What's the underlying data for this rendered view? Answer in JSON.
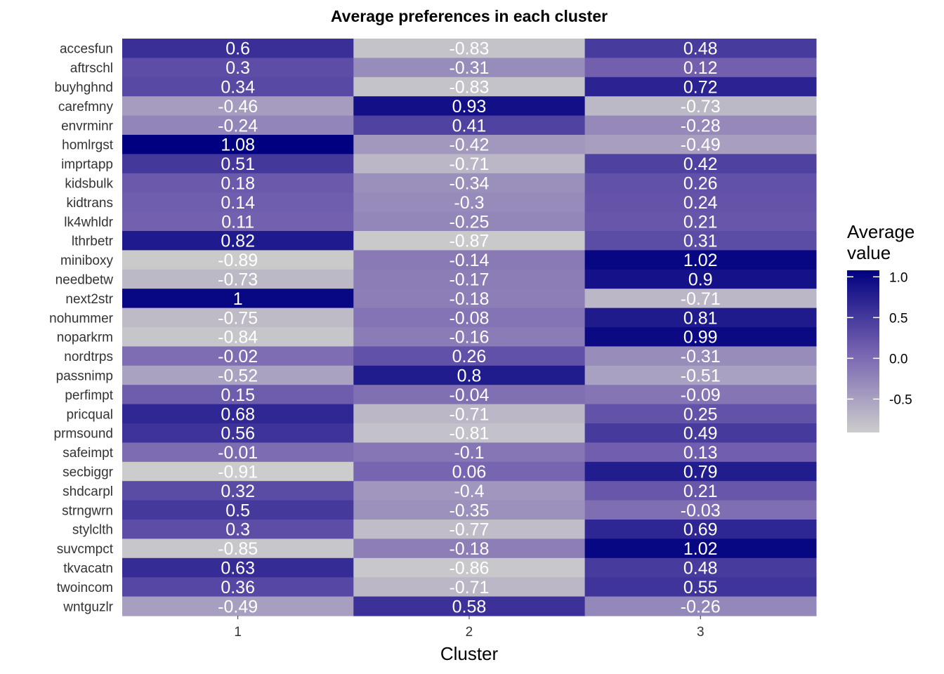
{
  "chart_data": {
    "type": "heatmap",
    "title": "Average preferences in each cluster",
    "xlabel": "Cluster",
    "ylabel": "",
    "x_categories": [
      "1",
      "2",
      "3"
    ],
    "y_categories": [
      "accesfun",
      "aftrschl",
      "buyhghnd",
      "carefmny",
      "envrminr",
      "homlrgst",
      "imprtapp",
      "kidsbulk",
      "kidtrans",
      "lk4whldr",
      "lthrbetr",
      "miniboxy",
      "needbetw",
      "next2str",
      "nohummer",
      "noparkrm",
      "nordtrps",
      "passnimp",
      "perfimpt",
      "pricqual",
      "prmsound",
      "safeimpt",
      "secbiggr",
      "shdcarpl",
      "strngwrn",
      "stylclth",
      "suvcmpct",
      "tkvacatn",
      "twoincom",
      "wntguzlr"
    ],
    "values": [
      [
        0.6,
        -0.83,
        0.48
      ],
      [
        0.3,
        -0.31,
        0.12
      ],
      [
        0.34,
        -0.83,
        0.72
      ],
      [
        -0.46,
        0.93,
        -0.73
      ],
      [
        -0.24,
        0.41,
        -0.28
      ],
      [
        1.08,
        -0.42,
        -0.49
      ],
      [
        0.51,
        -0.71,
        0.42
      ],
      [
        0.18,
        -0.34,
        0.26
      ],
      [
        0.14,
        -0.3,
        0.24
      ],
      [
        0.11,
        -0.25,
        0.21
      ],
      [
        0.82,
        -0.87,
        0.31
      ],
      [
        -0.89,
        -0.14,
        1.02
      ],
      [
        -0.73,
        -0.17,
        0.9
      ],
      [
        1,
        -0.18,
        -0.71
      ],
      [
        -0.75,
        -0.08,
        0.81
      ],
      [
        -0.84,
        -0.16,
        0.99
      ],
      [
        -0.02,
        0.26,
        -0.31
      ],
      [
        -0.52,
        0.8,
        -0.51
      ],
      [
        0.15,
        -0.04,
        -0.09
      ],
      [
        0.68,
        -0.71,
        0.25
      ],
      [
        0.56,
        -0.81,
        0.49
      ],
      [
        -0.01,
        -0.1,
        0.13
      ],
      [
        -0.91,
        0.06,
        0.79
      ],
      [
        0.32,
        -0.4,
        0.21
      ],
      [
        0.5,
        -0.35,
        -0.03
      ],
      [
        0.3,
        -0.77,
        0.69
      ],
      [
        -0.85,
        -0.18,
        1.02
      ],
      [
        0.63,
        -0.86,
        0.48
      ],
      [
        0.36,
        -0.71,
        0.55
      ],
      [
        -0.49,
        0.58,
        -0.26
      ]
    ],
    "color_scale": {
      "low": "#cccccc",
      "high": "#000080",
      "min": -0.91,
      "max": 1.08
    },
    "legend": {
      "title": "Average\n value",
      "ticks": [
        1.0,
        0.5,
        0.0,
        -0.5
      ],
      "tick_labels": [
        "1.0",
        "0.5",
        "0.0",
        "-0.5"
      ],
      "position": "right"
    },
    "grid": false
  }
}
